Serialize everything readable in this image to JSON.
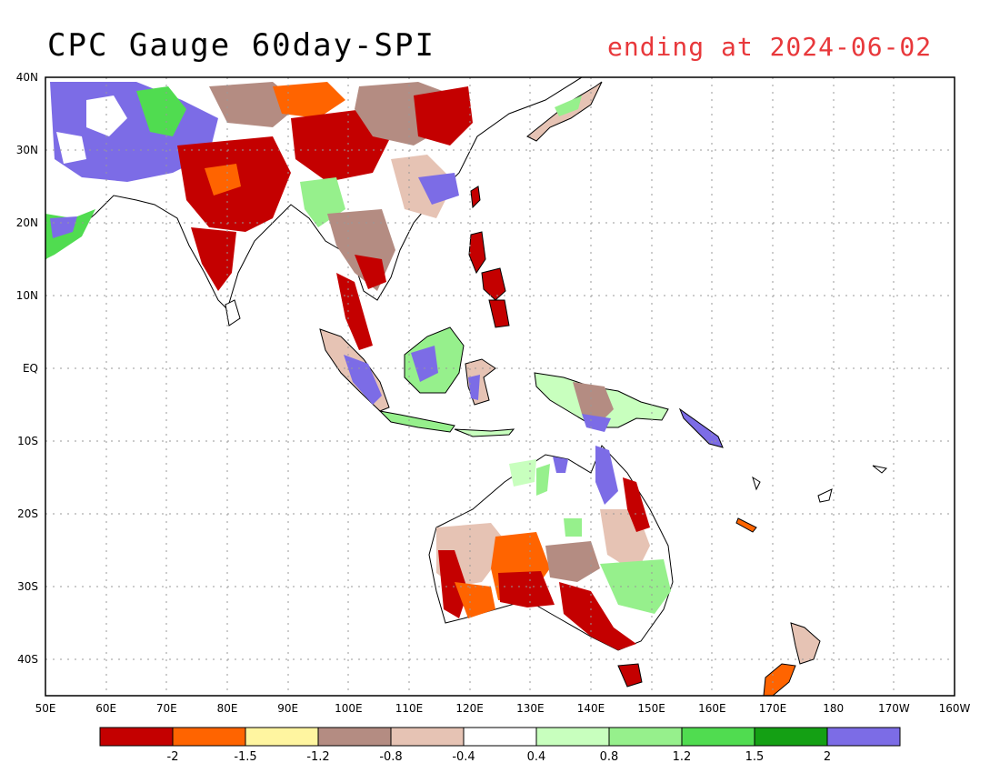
{
  "header": {
    "title": "CPC Gauge 60day-SPI",
    "subtitle": "ending at 2024-06-02"
  },
  "map": {
    "lon_range": [
      50,
      200
    ],
    "lat_range": [
      -45,
      40
    ],
    "lon_ticks": [
      "50E",
      "60E",
      "70E",
      "80E",
      "90E",
      "100E",
      "110E",
      "120E",
      "130E",
      "140E",
      "150E",
      "160E",
      "170E",
      "180",
      "170W",
      "160W"
    ],
    "lat_ticks": [
      {
        "lat": 40,
        "label": "40N"
      },
      {
        "lat": 30,
        "label": "30N"
      },
      {
        "lat": 20,
        "label": "20N"
      },
      {
        "lat": 10,
        "label": "10N"
      },
      {
        "lat": 0,
        "label": "EQ"
      },
      {
        "lat": -10,
        "label": "10S"
      },
      {
        "lat": -20,
        "label": "20S"
      },
      {
        "lat": -30,
        "label": "30S"
      },
      {
        "lat": -40,
        "label": "40S"
      }
    ],
    "grid": true
  },
  "colorbar": {
    "colors": [
      "#c40000",
      "#ff6400",
      "#fff5a0",
      "#b48c82",
      "#e6c3b4",
      "#ffffff",
      "#c8ffbe",
      "#96f08c",
      "#50dc50",
      "#14a014",
      "#7c6ce6"
    ],
    "labels": [
      "-2",
      "-1.5",
      "-1.2",
      "-0.8",
      "-0.4",
      "0.4",
      "0.8",
      "1.2",
      "1.5",
      "2"
    ]
  }
}
